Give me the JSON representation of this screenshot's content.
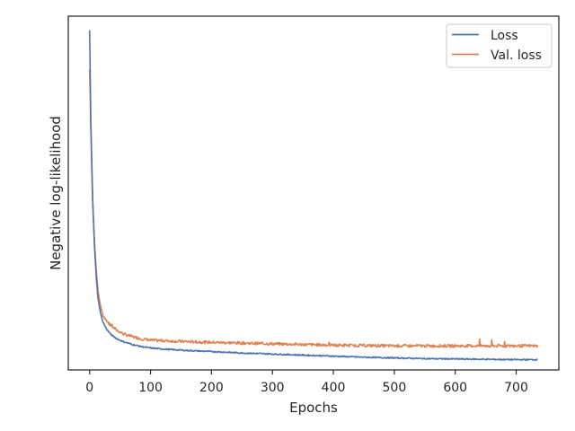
{
  "chart_data": {
    "type": "line",
    "title": "",
    "xlabel": "Epochs",
    "ylabel": "Negative log-likelihood",
    "xlim": [
      -35,
      770
    ],
    "ylim": [
      0,
      1
    ],
    "x_ticks": [
      "0",
      "100",
      "200",
      "300",
      "400",
      "500",
      "600",
      "700"
    ],
    "y_ticks_shown": false,
    "grid": false,
    "legend_position": "top-right",
    "series": [
      {
        "name": "Loss",
        "color": "#4c72b0",
        "points": [
          [
            0,
            0.96
          ],
          [
            2,
            0.7
          ],
          [
            5,
            0.48
          ],
          [
            8,
            0.35
          ],
          [
            11,
            0.26
          ],
          [
            14,
            0.2
          ],
          [
            18,
            0.16
          ],
          [
            22,
            0.135
          ],
          [
            28,
            0.115
          ],
          [
            35,
            0.1
          ],
          [
            45,
            0.088
          ],
          [
            55,
            0.08
          ],
          [
            70,
            0.072
          ],
          [
            85,
            0.066
          ],
          [
            100,
            0.062
          ],
          [
            130,
            0.058
          ],
          [
            160,
            0.055
          ],
          [
            200,
            0.052
          ],
          [
            250,
            0.048
          ],
          [
            300,
            0.045
          ],
          [
            350,
            0.042
          ],
          [
            400,
            0.039
          ],
          [
            450,
            0.036
          ],
          [
            500,
            0.034
          ],
          [
            550,
            0.032
          ],
          [
            600,
            0.031
          ],
          [
            650,
            0.03
          ],
          [
            700,
            0.029
          ],
          [
            735,
            0.029
          ]
        ]
      },
      {
        "name": "Val. loss",
        "color": "#dd8452",
        "points": [
          [
            0,
            0.85
          ],
          [
            2,
            0.68
          ],
          [
            5,
            0.48
          ],
          [
            8,
            0.36
          ],
          [
            11,
            0.28
          ],
          [
            14,
            0.22
          ],
          [
            18,
            0.18
          ],
          [
            22,
            0.155
          ],
          [
            28,
            0.138
          ],
          [
            35,
            0.125
          ],
          [
            45,
            0.112
          ],
          [
            55,
            0.102
          ],
          [
            70,
            0.094
          ],
          [
            85,
            0.088
          ],
          [
            100,
            0.084
          ],
          [
            130,
            0.082
          ],
          [
            160,
            0.08
          ],
          [
            200,
            0.078
          ],
          [
            250,
            0.076
          ],
          [
            300,
            0.074
          ],
          [
            350,
            0.072
          ],
          [
            400,
            0.07
          ],
          [
            450,
            0.069
          ],
          [
            500,
            0.068
          ],
          [
            550,
            0.068
          ],
          [
            600,
            0.068
          ],
          [
            650,
            0.068
          ],
          [
            700,
            0.068
          ],
          [
            735,
            0.068
          ]
        ]
      }
    ]
  }
}
